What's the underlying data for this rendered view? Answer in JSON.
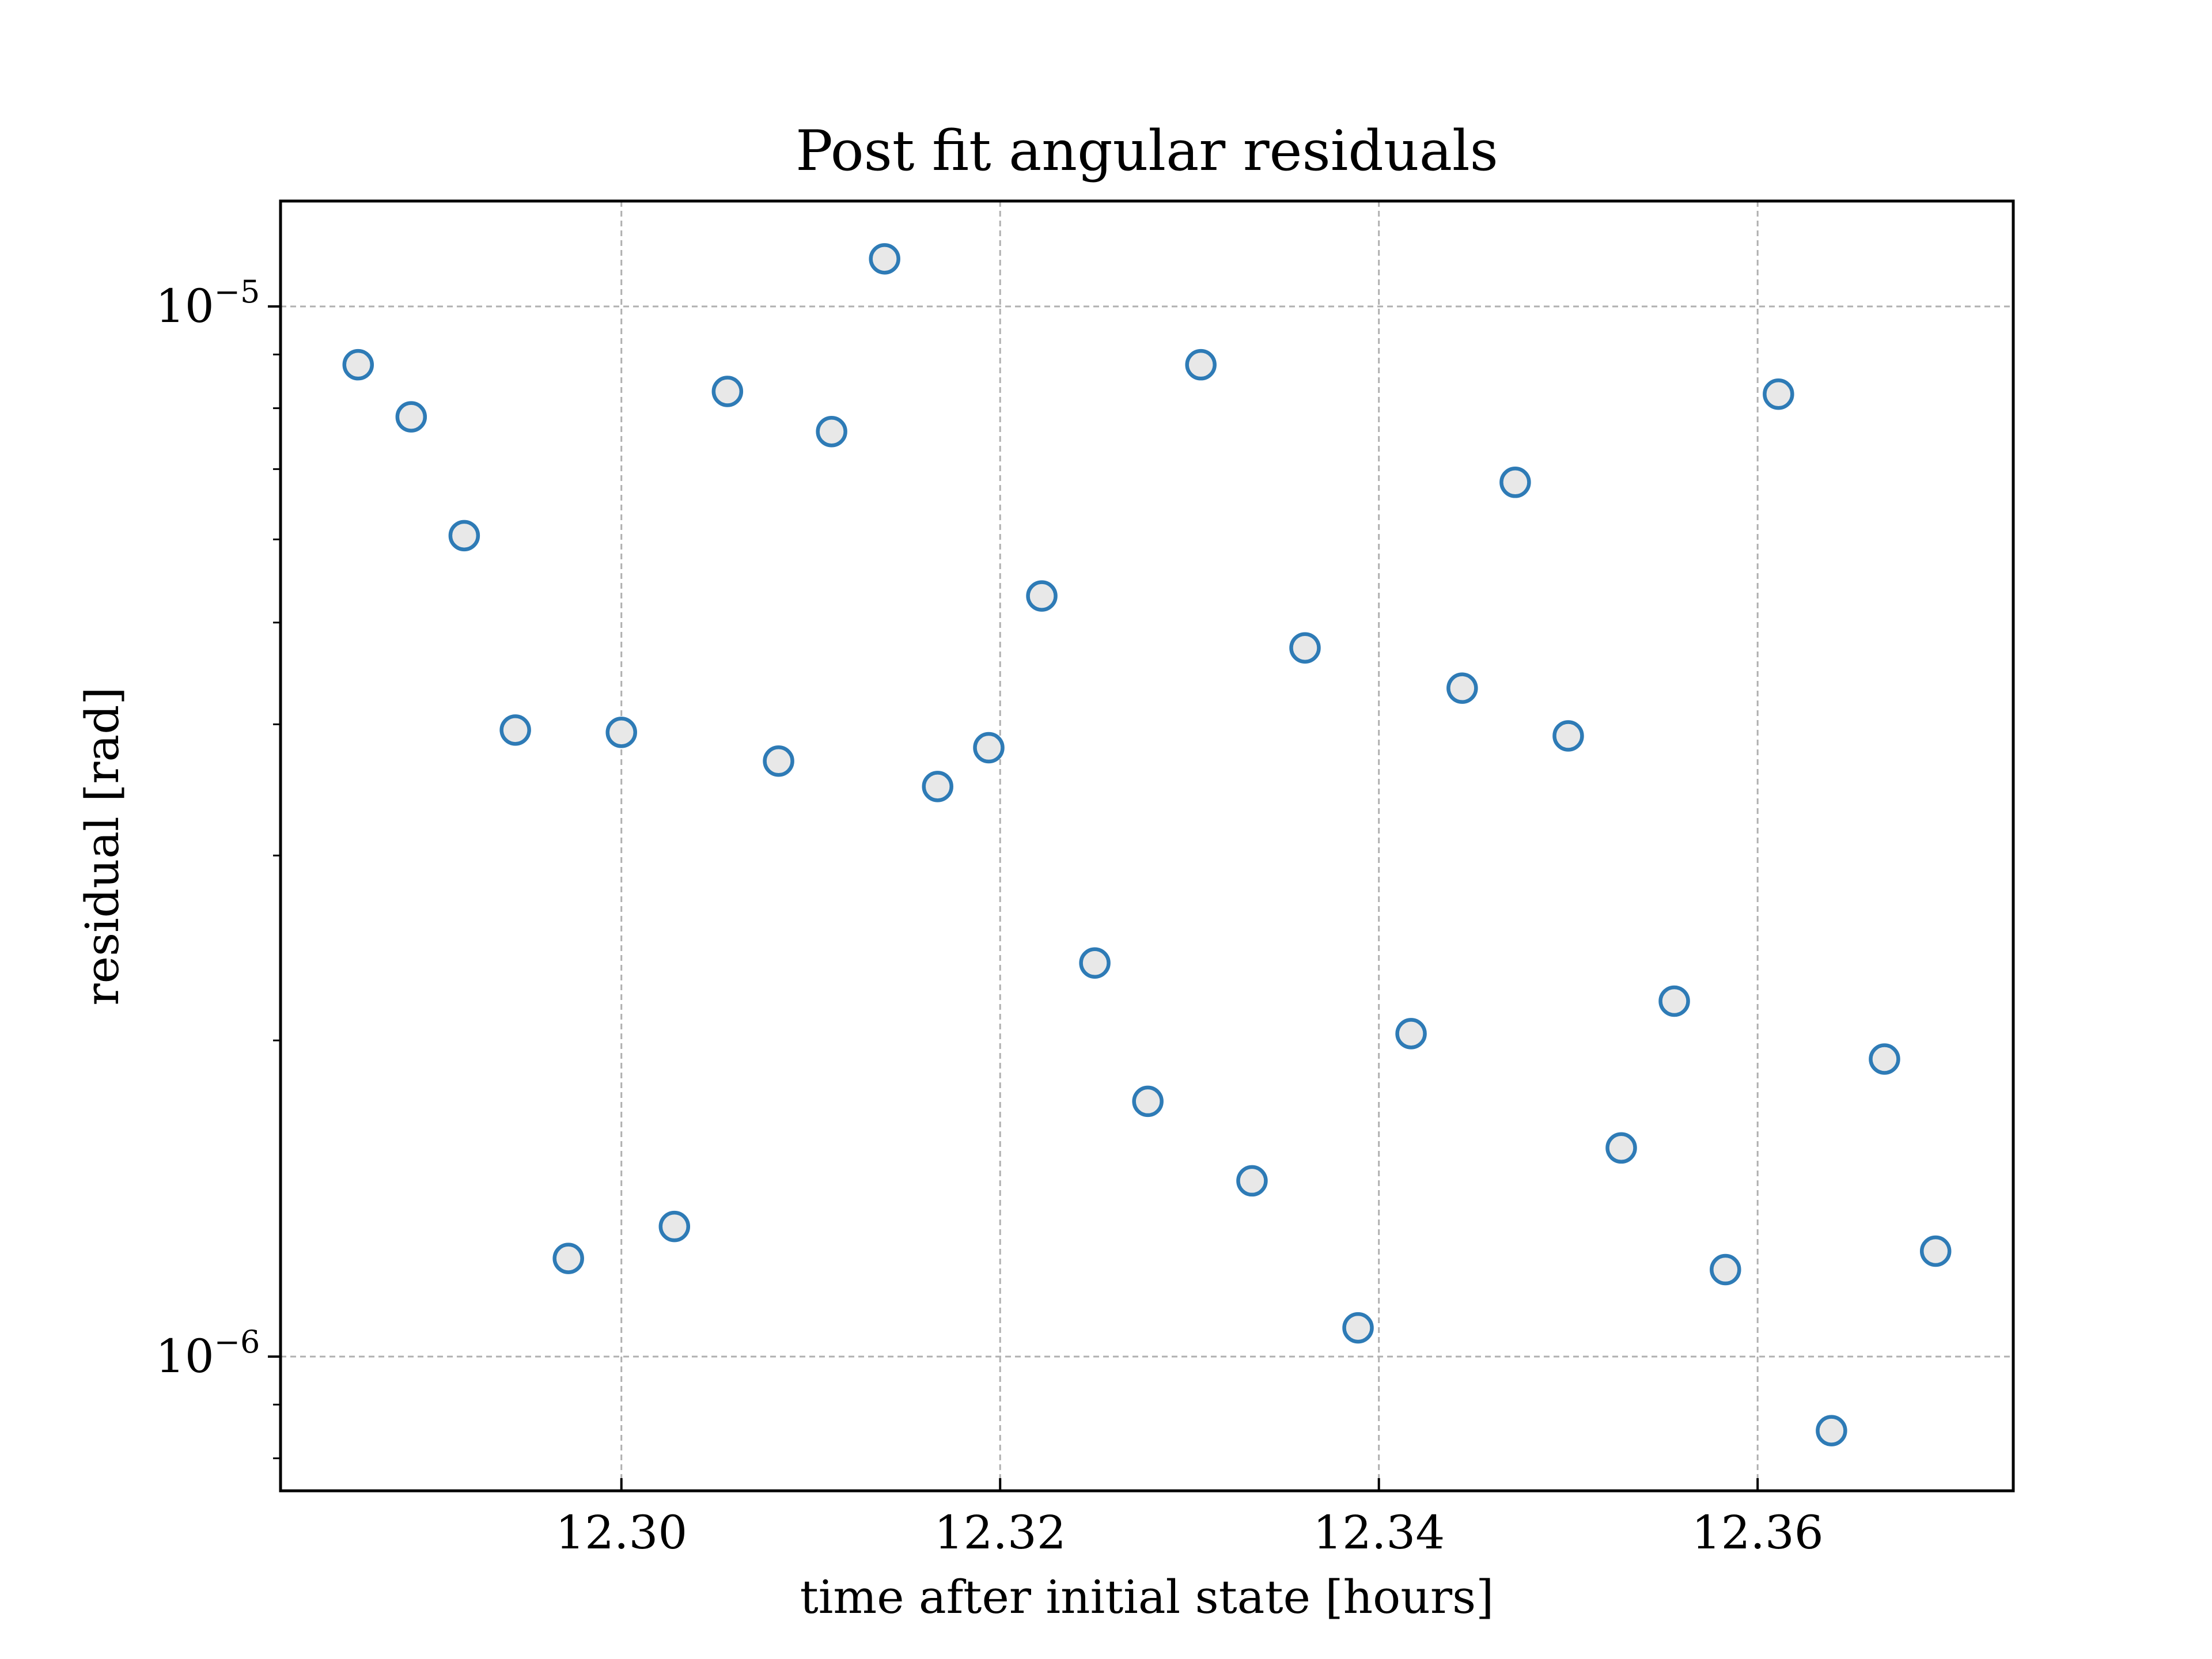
{
  "chart_data": {
    "type": "scatter",
    "title": "Post fit angular residuals",
    "xlabel": "time after initial state [hours]",
    "ylabel": "residual [rad]",
    "xlim": [
      12.282,
      12.3735
    ],
    "ylim": [
      7.45e-07,
      1.26e-05
    ],
    "yscale": "log",
    "grid": true,
    "legend": "none",
    "marker": "hollow-circle",
    "colors": {
      "marker_edge": "#2e7bb6",
      "marker_face": "#e8e8e8",
      "grid": "#b0b0b0"
    },
    "x_ticks": [
      {
        "value": 12.3,
        "label": "12.30"
      },
      {
        "value": 12.32,
        "label": "12.32"
      },
      {
        "value": 12.34,
        "label": "12.34"
      },
      {
        "value": 12.36,
        "label": "12.36"
      }
    ],
    "y_major_ticks": [
      {
        "value": 1e-06,
        "base": "10",
        "exponent": "−6"
      },
      {
        "value": 1e-05,
        "base": "10",
        "exponent": "−5"
      }
    ],
    "y_minor_ticks": [
      8e-07,
      9e-07,
      2e-06,
      3e-06,
      4e-06,
      5e-06,
      6e-06,
      7e-06,
      8e-06,
      9e-06
    ],
    "x": [
      12.2861,
      12.2889,
      12.2917,
      12.2944,
      12.2972,
      12.3,
      12.3028,
      12.3056,
      12.3083,
      12.3111,
      12.3139,
      12.3167,
      12.3194,
      12.3222,
      12.325,
      12.3278,
      12.3306,
      12.3333,
      12.3361,
      12.3389,
      12.3417,
      12.3444,
      12.3472,
      12.35,
      12.3528,
      12.3556,
      12.3583,
      12.3611,
      12.3639,
      12.3667,
      12.3694
    ],
    "y": [
      8.8e-06,
      7.85e-06,
      6.05e-06,
      3.95e-06,
      1.24e-06,
      3.93e-06,
      1.33e-06,
      8.3e-06,
      3.69e-06,
      7.6e-06,
      1.11e-05,
      3.49e-06,
      3.8e-06,
      5.3e-06,
      2.37e-06,
      1.75e-06,
      8.8e-06,
      1.47e-06,
      4.73e-06,
      1.065e-06,
      2.03e-06,
      4.33e-06,
      6.8e-06,
      3.9e-06,
      1.58e-06,
      2.18e-06,
      1.21e-06,
      8.25e-06,
      8.5e-07,
      1.92e-06,
      1.26e-06
    ]
  }
}
